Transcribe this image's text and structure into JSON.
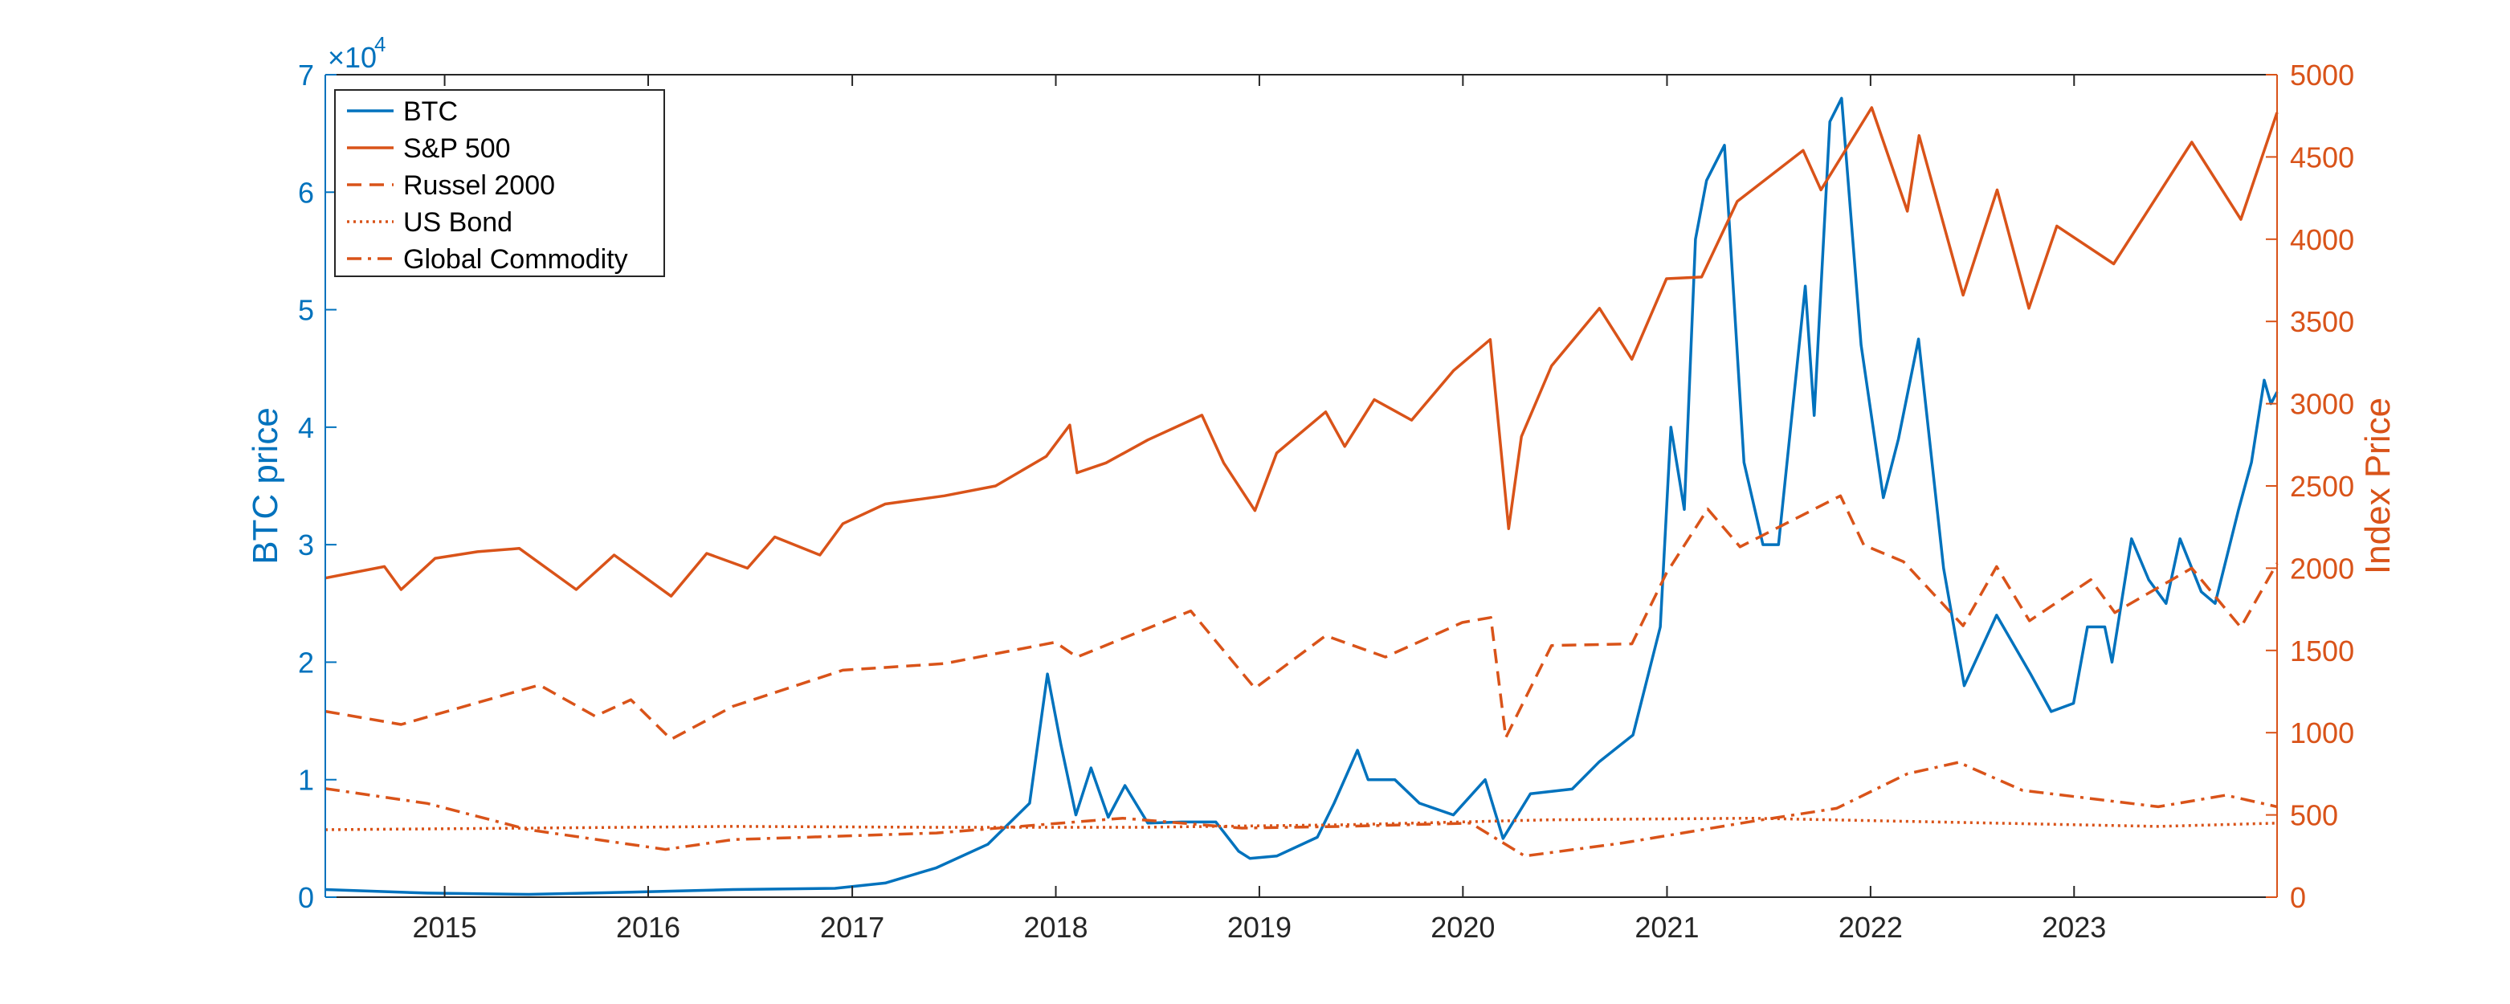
{
  "chart_data": {
    "type": "line",
    "x_range": [
      "2014-06-01",
      "2023-12-31"
    ],
    "x_ticks": [
      "2015",
      "2016",
      "2017",
      "2018",
      "2019",
      "2020",
      "2021",
      "2022",
      "2023"
    ],
    "left_axis": {
      "label": "BTC price",
      "range": [
        0,
        70000
      ],
      "ticks": [
        0,
        1,
        2,
        3,
        4,
        5,
        6,
        7
      ],
      "multiplier_label": "×10",
      "multiplier_exp": "4",
      "color": "#0072BD"
    },
    "right_axis": {
      "label": "Index Price",
      "range": [
        0,
        5000
      ],
      "ticks": [
        0,
        500,
        1000,
        1500,
        2000,
        2500,
        3000,
        3500,
        4000,
        4500,
        5000
      ],
      "color": "#D95319"
    },
    "grid": false,
    "legend": {
      "placement": "top-left",
      "entries": [
        "BTC",
        "S&P 500",
        "Russel 2000",
        "US Bond",
        "Global Commodity"
      ]
    },
    "series": [
      {
        "name": "BTC",
        "axis": "left",
        "color": "#0072BD",
        "style": "solid",
        "points": [
          [
            "2014-06-01",
            650
          ],
          [
            "2014-12-01",
            350
          ],
          [
            "2015-06-01",
            240
          ],
          [
            "2015-12-01",
            430
          ],
          [
            "2016-06-01",
            650
          ],
          [
            "2016-12-01",
            750
          ],
          [
            "2017-03-01",
            1200
          ],
          [
            "2017-06-01",
            2500
          ],
          [
            "2017-09-01",
            4500
          ],
          [
            "2017-11-15",
            8000
          ],
          [
            "2017-12-17",
            19000
          ],
          [
            "2018-01-10",
            13000
          ],
          [
            "2018-02-06",
            7000
          ],
          [
            "2018-03-05",
            11000
          ],
          [
            "2018-04-05",
            6800
          ],
          [
            "2018-05-05",
            9500
          ],
          [
            "2018-06-15",
            6300
          ],
          [
            "2018-08-15",
            6400
          ],
          [
            "2018-10-15",
            6400
          ],
          [
            "2018-11-25",
            3900
          ],
          [
            "2018-12-15",
            3300
          ],
          [
            "2019-02-01",
            3500
          ],
          [
            "2019-04-15",
            5100
          ],
          [
            "2019-05-15",
            8000
          ],
          [
            "2019-06-26",
            12500
          ],
          [
            "2019-07-15",
            10000
          ],
          [
            "2019-09-01",
            10000
          ],
          [
            "2019-10-15",
            8000
          ],
          [
            "2019-12-15",
            7000
          ],
          [
            "2020-02-10",
            10000
          ],
          [
            "2020-03-13",
            5000
          ],
          [
            "2020-05-01",
            8800
          ],
          [
            "2020-07-15",
            9200
          ],
          [
            "2020-09-01",
            11500
          ],
          [
            "2020-11-01",
            13800
          ],
          [
            "2020-12-20",
            23000
          ],
          [
            "2021-01-08",
            40000
          ],
          [
            "2021-02-01",
            33000
          ],
          [
            "2021-02-21",
            56000
          ],
          [
            "2021-03-13",
            61000
          ],
          [
            "2021-04-14",
            64000
          ],
          [
            "2021-05-19",
            37000
          ],
          [
            "2021-06-22",
            30000
          ],
          [
            "2021-07-20",
            30000
          ],
          [
            "2021-09-06",
            52000
          ],
          [
            "2021-09-22",
            41000
          ],
          [
            "2021-10-20",
            66000
          ],
          [
            "2021-11-10",
            68000
          ],
          [
            "2021-12-15",
            47000
          ],
          [
            "2022-01-24",
            34000
          ],
          [
            "2022-02-20",
            39000
          ],
          [
            "2022-03-28",
            47500
          ],
          [
            "2022-05-12",
            28000
          ],
          [
            "2022-06-18",
            18000
          ],
          [
            "2022-08-15",
            24000
          ],
          [
            "2022-10-15",
            19000
          ],
          [
            "2022-11-21",
            15800
          ],
          [
            "2022-12-31",
            16500
          ],
          [
            "2023-01-25",
            23000
          ],
          [
            "2023-02-25",
            23000
          ],
          [
            "2023-03-10",
            20000
          ],
          [
            "2023-04-14",
            30500
          ],
          [
            "2023-05-15",
            27000
          ],
          [
            "2023-06-15",
            25000
          ],
          [
            "2023-07-10",
            30500
          ],
          [
            "2023-08-17",
            26000
          ],
          [
            "2023-09-11",
            25000
          ],
          [
            "2023-10-23",
            33000
          ],
          [
            "2023-11-15",
            37000
          ],
          [
            "2023-12-08",
            44000
          ],
          [
            "2023-12-20",
            42000
          ],
          [
            "2023-12-31",
            43000
          ]
        ]
      },
      {
        "name": "S&P 500",
        "axis": "right",
        "color": "#D95319",
        "style": "solid",
        "points": [
          [
            "2014-06-01",
            1940
          ],
          [
            "2014-09-15",
            2010
          ],
          [
            "2014-10-15",
            1870
          ],
          [
            "2014-12-15",
            2060
          ],
          [
            "2015-03-01",
            2100
          ],
          [
            "2015-05-15",
            2120
          ],
          [
            "2015-08-25",
            1870
          ],
          [
            "2015-11-01",
            2080
          ],
          [
            "2016-02-11",
            1830
          ],
          [
            "2016-04-15",
            2090
          ],
          [
            "2016-06-27",
            2000
          ],
          [
            "2016-08-15",
            2190
          ],
          [
            "2016-11-04",
            2080
          ],
          [
            "2016-12-15",
            2270
          ],
          [
            "2017-03-01",
            2390
          ],
          [
            "2017-06-15",
            2440
          ],
          [
            "2017-09-15",
            2500
          ],
          [
            "2017-12-15",
            2680
          ],
          [
            "2018-01-26",
            2870
          ],
          [
            "2018-02-08",
            2580
          ],
          [
            "2018-04-01",
            2640
          ],
          [
            "2018-06-15",
            2780
          ],
          [
            "2018-09-20",
            2930
          ],
          [
            "2018-10-29",
            2640
          ],
          [
            "2018-12-24",
            2350
          ],
          [
            "2019-02-01",
            2700
          ],
          [
            "2019-04-30",
            2950
          ],
          [
            "2019-06-03",
            2740
          ],
          [
            "2019-07-26",
            3025
          ],
          [
            "2019-10-01",
            2900
          ],
          [
            "2019-12-15",
            3200
          ],
          [
            "2020-02-19",
            3390
          ],
          [
            "2020-03-23",
            2240
          ],
          [
            "2020-04-15",
            2800
          ],
          [
            "2020-06-08",
            3230
          ],
          [
            "2020-09-02",
            3580
          ],
          [
            "2020-10-30",
            3270
          ],
          [
            "2020-12-31",
            3760
          ],
          [
            "2021-03-04",
            3770
          ],
          [
            "2021-05-07",
            4230
          ],
          [
            "2021-09-02",
            4540
          ],
          [
            "2021-10-04",
            4300
          ],
          [
            "2022-01-03",
            4800
          ],
          [
            "2022-03-08",
            4170
          ],
          [
            "2022-03-29",
            4630
          ],
          [
            "2022-06-16",
            3660
          ],
          [
            "2022-08-16",
            4300
          ],
          [
            "2022-10-12",
            3580
          ],
          [
            "2022-12-01",
            4080
          ],
          [
            "2023-03-13",
            3850
          ],
          [
            "2023-07-31",
            4590
          ],
          [
            "2023-10-27",
            4120
          ],
          [
            "2023-12-31",
            4770
          ]
        ]
      },
      {
        "name": "Russel 2000",
        "axis": "right",
        "color": "#D95319",
        "style": "dashed",
        "points": [
          [
            "2014-06-01",
            1130
          ],
          [
            "2014-10-15",
            1050
          ],
          [
            "2015-06-20",
            1290
          ],
          [
            "2015-09-28",
            1100
          ],
          [
            "2015-12-01",
            1200
          ],
          [
            "2016-02-11",
            960
          ],
          [
            "2016-06-01",
            1160
          ],
          [
            "2016-12-15",
            1380
          ],
          [
            "2017-06-15",
            1420
          ],
          [
            "2017-12-31",
            1550
          ],
          [
            "2018-02-08",
            1460
          ],
          [
            "2018-08-31",
            1740
          ],
          [
            "2018-12-24",
            1270
          ],
          [
            "2019-04-30",
            1590
          ],
          [
            "2019-08-15",
            1460
          ],
          [
            "2019-12-31",
            1670
          ],
          [
            "2020-02-20",
            1700
          ],
          [
            "2020-03-18",
            970
          ],
          [
            "2020-06-08",
            1530
          ],
          [
            "2020-10-30",
            1540
          ],
          [
            "2020-12-31",
            1970
          ],
          [
            "2021-03-15",
            2360
          ],
          [
            "2021-05-12",
            2130
          ],
          [
            "2021-11-08",
            2440
          ],
          [
            "2021-12-20",
            2140
          ],
          [
            "2022-03-01",
            2040
          ],
          [
            "2022-06-16",
            1650
          ],
          [
            "2022-08-15",
            2010
          ],
          [
            "2022-10-13",
            1680
          ],
          [
            "2023-01-31",
            1930
          ],
          [
            "2023-03-15",
            1730
          ],
          [
            "2023-07-31",
            2000
          ],
          [
            "2023-10-27",
            1640
          ],
          [
            "2023-12-31",
            2030
          ]
        ]
      },
      {
        "name": "US Bond",
        "axis": "right",
        "color": "#D95319",
        "style": "dotted",
        "points": [
          [
            "2014-06-01",
            410
          ],
          [
            "2015-06-01",
            420
          ],
          [
            "2016-06-01",
            430
          ],
          [
            "2017-06-01",
            425
          ],
          [
            "2018-06-01",
            425
          ],
          [
            "2019-06-01",
            440
          ],
          [
            "2020-06-01",
            470
          ],
          [
            "2021-06-01",
            480
          ],
          [
            "2022-06-01",
            455
          ],
          [
            "2023-06-01",
            430
          ],
          [
            "2023-12-31",
            450
          ]
        ]
      },
      {
        "name": "Global Commodity",
        "axis": "right",
        "color": "#D95319",
        "style": "dashdot",
        "points": [
          [
            "2014-06-01",
            660
          ],
          [
            "2014-12-01",
            570
          ],
          [
            "2015-06-01",
            410
          ],
          [
            "2016-02-01",
            290
          ],
          [
            "2016-06-01",
            350
          ],
          [
            "2017-06-01",
            390
          ],
          [
            "2018-05-01",
            480
          ],
          [
            "2018-12-01",
            420
          ],
          [
            "2019-06-01",
            430
          ],
          [
            "2020-01-15",
            450
          ],
          [
            "2020-04-21",
            250
          ],
          [
            "2020-10-15",
            330
          ],
          [
            "2021-06-01",
            460
          ],
          [
            "2021-11-01",
            540
          ],
          [
            "2022-03-08",
            750
          ],
          [
            "2022-06-08",
            820
          ],
          [
            "2022-09-30",
            650
          ],
          [
            "2023-06-01",
            550
          ],
          [
            "2023-09-30",
            620
          ],
          [
            "2023-12-31",
            550
          ]
        ]
      }
    ]
  }
}
